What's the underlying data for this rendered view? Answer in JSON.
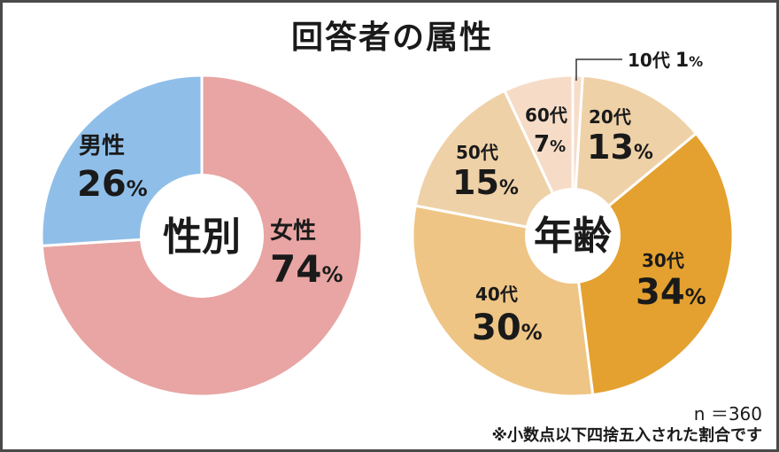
{
  "title": "回答者の属性",
  "colors": {
    "female": "#e8a5a3",
    "male": "#8fbfe9",
    "age_10": "#f7dcc8",
    "age_20": "#efd1a8",
    "age_30": "#e4a130",
    "age_40": "#efc585",
    "age_50": "#efd1a8",
    "age_60": "#f6dcc7"
  },
  "chart_data": [
    {
      "type": "pie",
      "center_label": "性別",
      "slices": [
        {
          "key": "female",
          "label": "女性",
          "pct_text": "74",
          "value": 74
        },
        {
          "key": "male",
          "label": "男性",
          "pct_text": "26",
          "value": 26
        }
      ]
    },
    {
      "type": "pie",
      "center_label": "年齢",
      "slices": [
        {
          "key": "age_10",
          "label": "10代",
          "pct_text": "1",
          "value": 1
        },
        {
          "key": "age_20",
          "label": "20代",
          "pct_text": "13",
          "value": 13
        },
        {
          "key": "age_30",
          "label": "30代",
          "pct_text": "34",
          "value": 34
        },
        {
          "key": "age_40",
          "label": "40代",
          "pct_text": "30",
          "value": 30
        },
        {
          "key": "age_50",
          "label": "50代",
          "pct_text": "15",
          "value": 15
        },
        {
          "key": "age_60",
          "label": "60代",
          "pct_text": "7",
          "value": 7
        }
      ]
    }
  ],
  "percent_sign": "%",
  "notes": {
    "n": "n ＝360",
    "rounding": "※小数点以下四捨五入された割合です"
  }
}
